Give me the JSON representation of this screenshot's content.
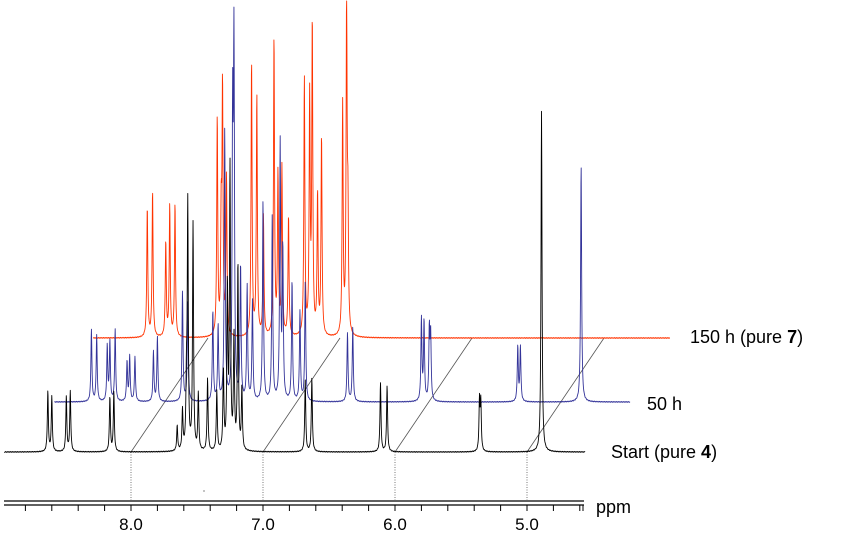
{
  "chart_data": {
    "type": "line",
    "title": "",
    "xlabel": "ppm",
    "ylabel": "",
    "xlim": [
      8.96,
      4.56
    ],
    "x_ticks": [
      "8.0",
      "7.0",
      "6.0",
      "5.0"
    ],
    "x_tick_values": [
      8.0,
      7.0,
      6.0,
      5.0
    ],
    "minor_tick_step": 0.2,
    "grid": false,
    "stacked": true,
    "series": [
      {
        "name": "Start (pure 4)",
        "label_parts": [
          "Start (pure ",
          "4",
          ")"
        ],
        "color": "#000000",
        "ppm_range": [
          8.96,
          4.56
        ],
        "peaks": [
          [
            8.63,
            60
          ],
          [
            8.6,
            55
          ],
          [
            8.49,
            55
          ],
          [
            8.46,
            60
          ],
          [
            8.16,
            55
          ],
          [
            8.13,
            60
          ],
          [
            7.65,
            25
          ],
          [
            7.61,
            40
          ],
          [
            7.58,
            60
          ],
          [
            7.57,
            245
          ],
          [
            7.53,
            227
          ],
          [
            7.49,
            57
          ],
          [
            7.42,
            72
          ],
          [
            7.35,
            60
          ],
          [
            7.3,
            80
          ],
          [
            7.27,
            162
          ],
          [
            7.25,
            282
          ],
          [
            7.22,
            112
          ],
          [
            7.19,
            187
          ],
          [
            7.16,
            62
          ],
          [
            6.68,
            72
          ],
          [
            6.63,
            74
          ],
          [
            6.11,
            69
          ],
          [
            6.06,
            66
          ],
          [
            5.36,
            50
          ],
          [
            5.35,
            48
          ],
          [
            4.89,
            341
          ]
        ]
      },
      {
        "name": "50 h",
        "label_parts": [
          "50 h",
          "",
          ""
        ],
        "color": "#333399",
        "ppm_range": [
          8.83,
          4.47
        ],
        "peaks": [
          [
            8.55,
            72
          ],
          [
            8.51,
            66
          ],
          [
            8.43,
            55
          ],
          [
            8.41,
            60
          ],
          [
            8.37,
            72
          ],
          [
            8.28,
            40
          ],
          [
            8.26,
            45
          ],
          [
            8.22,
            45
          ],
          [
            8.08,
            50
          ],
          [
            8.05,
            65
          ],
          [
            7.86,
            110
          ],
          [
            7.82,
            100
          ],
          [
            7.63,
            90
          ],
          [
            7.59,
            75
          ],
          [
            7.54,
            270
          ],
          [
            7.48,
            270
          ],
          [
            7.47,
            345
          ],
          [
            7.42,
            135
          ],
          [
            7.37,
            115
          ],
          [
            7.33,
            100
          ],
          [
            7.25,
            200
          ],
          [
            7.18,
            185
          ],
          [
            7.12,
            257
          ],
          [
            7.1,
            150
          ],
          [
            7.03,
            120
          ],
          [
            6.97,
            90
          ],
          [
            6.93,
            119
          ],
          [
            6.61,
            69
          ],
          [
            6.57,
            75
          ],
          [
            6.05,
            82
          ],
          [
            6.03,
            80
          ],
          [
            5.99,
            70
          ],
          [
            5.98,
            65
          ],
          [
            5.32,
            55
          ],
          [
            5.3,
            55
          ],
          [
            4.84,
            237
          ]
        ]
      },
      {
        "name": "150 h (pure 7)",
        "label_parts": [
          "150 h (pure ",
          "7",
          ")"
        ],
        "color": "#ff3300",
        "ppm_range": [
          8.87,
          4.5
        ],
        "peaks": [
          [
            8.46,
            130
          ],
          [
            8.42,
            146
          ],
          [
            8.32,
            95
          ],
          [
            8.29,
            131
          ],
          [
            8.25,
            133
          ],
          [
            7.93,
            218
          ],
          [
            7.9,
            110
          ],
          [
            7.89,
            243
          ],
          [
            7.86,
            160
          ],
          [
            7.67,
            276
          ],
          [
            7.63,
            241
          ],
          [
            7.58,
            120
          ],
          [
            7.5,
            299
          ],
          [
            7.47,
            160
          ],
          [
            7.44,
            168
          ],
          [
            7.39,
            120
          ],
          [
            7.27,
            258
          ],
          [
            7.23,
            235
          ],
          [
            7.21,
            310
          ],
          [
            7.17,
            140
          ],
          [
            7.14,
            200
          ],
          [
            6.98,
            231
          ],
          [
            6.95,
            335
          ],
          [
            6.94,
            110
          ]
        ]
      }
    ]
  }
}
